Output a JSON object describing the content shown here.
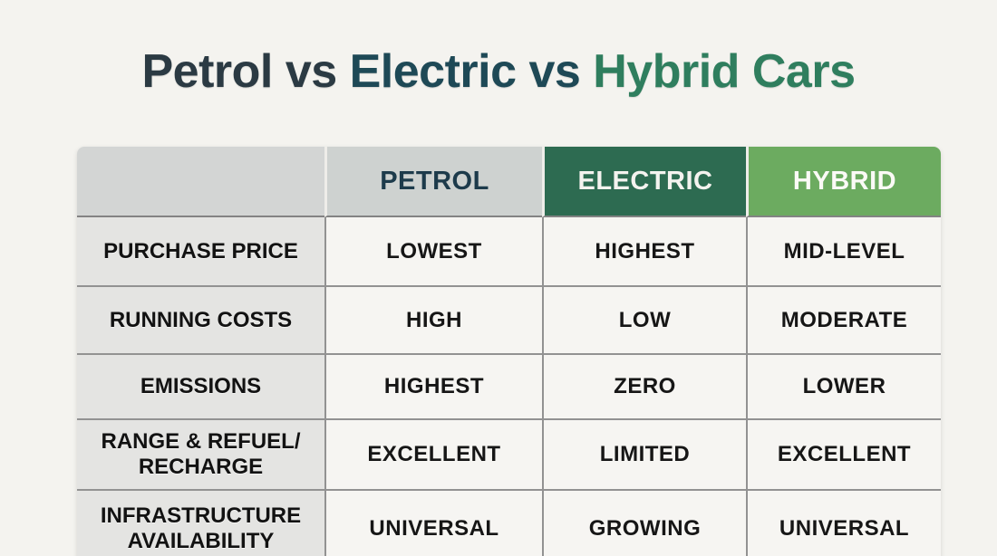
{
  "page": {
    "background": "#f4f3ef"
  },
  "title": {
    "full_text": "Petrol vs Electric vs Hybrid Cars",
    "segments": [
      {
        "text": "Petrol vs ",
        "color": "#2b3a43"
      },
      {
        "text": "Electric vs ",
        "color": "#1e4956"
      },
      {
        "text": "Hybrid Cars",
        "color": "#2f7e5e"
      }
    ]
  },
  "table": {
    "header": {
      "corner_label": "",
      "corner_bg": "#d3d5d4",
      "columns": [
        {
          "label": "PETROL",
          "bg": "#ced2d0",
          "text_color": "#1d3b4b"
        },
        {
          "label": "ELECTRIC",
          "bg": "#2d6b51",
          "text_color": "#f4f3ef"
        },
        {
          "label": "HYBRID",
          "bg": "#6cab60",
          "text_color": "#fbfaf6"
        }
      ]
    },
    "rows": [
      {
        "label": "PURCHASE PRICE",
        "values": [
          "LOWEST",
          "HIGHEST",
          "MID-LEVEL"
        ]
      },
      {
        "label": "RUNNING COSTS",
        "values": [
          "HIGH",
          "LOW",
          "MODERATE"
        ]
      },
      {
        "label": "EMISSIONS",
        "values": [
          "HIGHEST",
          "ZERO",
          "LOWER"
        ]
      },
      {
        "label": "RANGE & REFUEL/ RECHARGE",
        "values": [
          "EXCELLENT",
          "LIMITED",
          "EXCELLENT"
        ]
      },
      {
        "label": "INFRASTRUCTURE AVAILABILITY",
        "values": [
          "UNIVERSAL",
          "GROWING",
          "UNIVERSAL"
        ]
      }
    ]
  },
  "colors": {
    "gridline": "#929292",
    "header_divider": "#838383",
    "row_label_bg": "#e4e4e2",
    "data_cell_bg": "#f6f5f2",
    "electric_green": "#2d6b51",
    "hybrid_green": "#6cab60"
  },
  "chart_data": {
    "type": "table",
    "title": "Petrol vs Electric vs Hybrid Cars",
    "columns": [
      "",
      "PETROL",
      "ELECTRIC",
      "HYBRID"
    ],
    "rows": [
      [
        "PURCHASE PRICE",
        "LOWEST",
        "HIGHEST",
        "MID-LEVEL"
      ],
      [
        "RUNNING COSTS",
        "HIGH",
        "LOW",
        "MODERATE"
      ],
      [
        "EMISSIONS",
        "HIGHEST",
        "ZERO",
        "LOWER"
      ],
      [
        "RANGE & REFUEL/ RECHARGE",
        "EXCELLENT",
        "LIMITED",
        "EXCELLENT"
      ],
      [
        "INFRASTRUCTURE AVAILABILITY",
        "UNIVERSAL",
        "GROWING",
        "UNIVERSAL"
      ]
    ],
    "layout": {
      "header_highlight": [
        "ELECTRIC",
        "HYBRID"
      ],
      "grid": true,
      "legend": "none"
    }
  }
}
